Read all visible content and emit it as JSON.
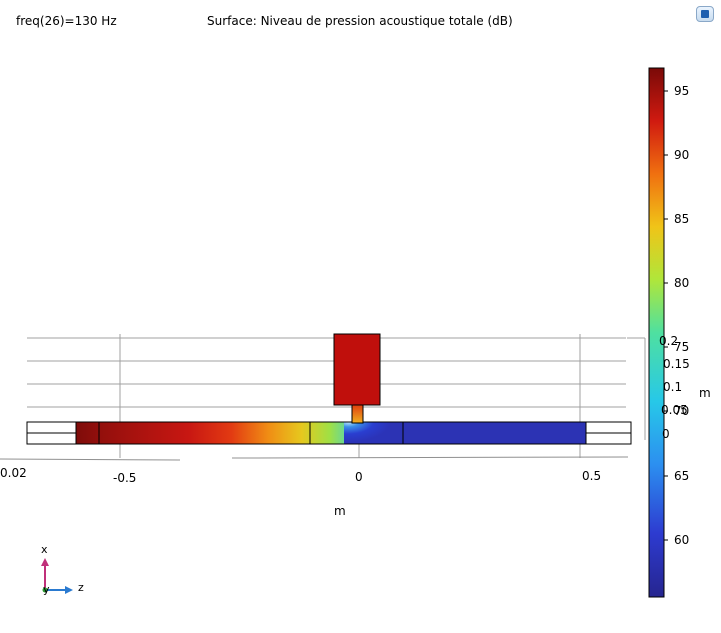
{
  "header": {
    "freq_label": "freq(26)=130 Hz",
    "title": "Surface: Niveau de pression acoustique totale (dB)"
  },
  "toolbar": {
    "icon": "view-window-icon"
  },
  "axes": {
    "z_ticks": [
      "-0.5",
      "0",
      "0.5"
    ],
    "left_cut_tick": "0.02",
    "z_unit": "m",
    "x_ticks": [
      "0.2",
      "0.15",
      "0.1",
      "0.05",
      "0"
    ],
    "x_unit": "m"
  },
  "colorbar": {
    "ticks": [
      "95",
      "90",
      "85",
      "80",
      "75",
      "70",
      "65",
      "60"
    ],
    "min": 55.5,
    "max": 97
  },
  "triad": {
    "x_label": "x",
    "y_label": "y",
    "z_label": "z"
  },
  "colors": {
    "grid": "#a0a0a0",
    "x_axis": "#c0307a",
    "z_axis": "#2a7ad0"
  }
}
